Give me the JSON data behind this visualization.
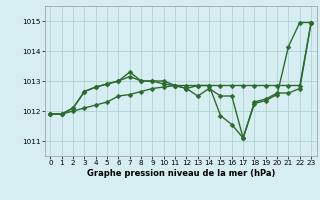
{
  "xlabel": "Graphe pression niveau de la mer (hPa)",
  "bg_color": "#d6eef2",
  "grid_color": "#aacccc",
  "line_color": "#2d6a2d",
  "ylim": [
    1010.5,
    1015.5
  ],
  "xlim": [
    -0.5,
    23.5
  ],
  "yticks": [
    1011,
    1012,
    1013,
    1014,
    1015
  ],
  "xticks": [
    0,
    1,
    2,
    3,
    4,
    5,
    6,
    7,
    8,
    9,
    10,
    11,
    12,
    13,
    14,
    15,
    16,
    17,
    18,
    19,
    20,
    21,
    22,
    23
  ],
  "series1": [
    1011.9,
    1011.9,
    1012.0,
    1012.1,
    1012.2,
    1012.3,
    1012.5,
    1012.55,
    1012.65,
    1012.75,
    1012.8,
    1012.85,
    1012.85,
    1012.85,
    1012.85,
    1012.85,
    1012.85,
    1012.85,
    1012.85,
    1012.85,
    1012.85,
    1012.85,
    1012.85,
    1014.95
  ],
  "series2": [
    1011.9,
    1011.9,
    1012.1,
    1012.65,
    1012.8,
    1012.9,
    1013.0,
    1013.15,
    1013.0,
    1013.0,
    1013.0,
    1012.85,
    1012.75,
    1012.85,
    1012.85,
    1011.85,
    1011.55,
    1011.1,
    1012.25,
    1012.35,
    1012.55,
    1014.15,
    1014.95,
    1014.95
  ],
  "series3": [
    1011.9,
    1011.9,
    1012.1,
    1012.65,
    1012.8,
    1012.9,
    1013.0,
    1013.3,
    1013.0,
    1013.0,
    1012.9,
    1012.85,
    1012.75,
    1012.5,
    1012.75,
    1012.5,
    1012.5,
    1011.1,
    1012.3,
    1012.4,
    1012.6,
    1012.6,
    1012.75,
    1014.95
  ],
  "marker": "D",
  "markersize": 2.5,
  "linewidth": 1.0,
  "xlabel_fontsize": 6.0,
  "tick_fontsize": 5.2
}
